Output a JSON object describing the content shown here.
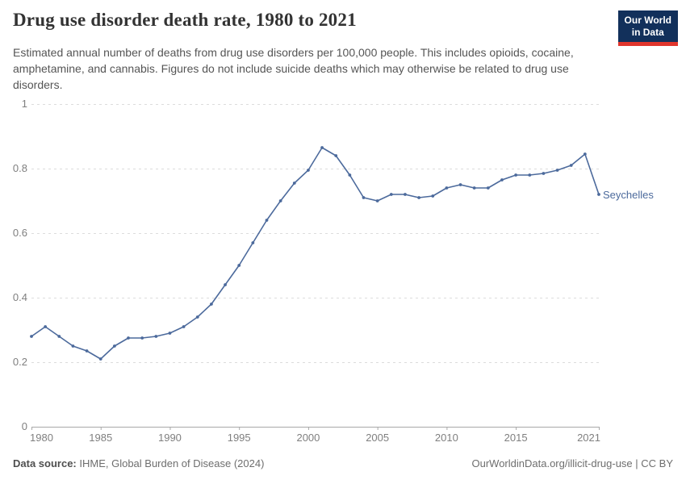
{
  "header": {
    "title": "Drug use disorder death rate, 1980 to 2021",
    "subtitle": "Estimated annual number of deaths from drug use disorders per 100,000 people. This includes opioids, cocaine, amphetamine, and cannabis. Figures do not include suicide deaths which may otherwise be related to drug use disorders.",
    "logo_line1": "Our World",
    "logo_line2": "in Data",
    "logo_bg_color": "#12305B",
    "logo_accent_color": "#E0352C"
  },
  "chart_data": {
    "type": "line",
    "title": "Drug use disorder death rate, 1980 to 2021",
    "xlabel": "",
    "ylabel": "",
    "xlim": [
      1980,
      2021
    ],
    "ylim": [
      0,
      1
    ],
    "xticks": [
      1980,
      1985,
      1990,
      1995,
      2000,
      2005,
      2010,
      2015,
      2021
    ],
    "yticks": [
      0,
      0.2,
      0.4,
      0.6,
      0.8,
      1
    ],
    "grid": "horizontal-dashed",
    "legend": "end-of-line-label",
    "end_label": "Seychelles",
    "line_color": "#4C6A9C",
    "series": [
      {
        "name": "Seychelles",
        "x": [
          1980,
          1981,
          1982,
          1983,
          1984,
          1985,
          1986,
          1987,
          1988,
          1989,
          1990,
          1991,
          1992,
          1993,
          1994,
          1995,
          1996,
          1997,
          1998,
          1999,
          2000,
          2001,
          2002,
          2003,
          2004,
          2005,
          2006,
          2007,
          2008,
          2009,
          2010,
          2011,
          2012,
          2013,
          2014,
          2015,
          2016,
          2017,
          2018,
          2019,
          2020,
          2021
        ],
        "values": [
          0.28,
          0.31,
          0.28,
          0.25,
          0.235,
          0.21,
          0.25,
          0.275,
          0.275,
          0.28,
          0.29,
          0.31,
          0.34,
          0.38,
          0.44,
          0.5,
          0.57,
          0.64,
          0.7,
          0.755,
          0.795,
          0.865,
          0.84,
          0.78,
          0.71,
          0.7,
          0.72,
          0.72,
          0.71,
          0.715,
          0.74,
          0.75,
          0.74,
          0.74,
          0.765,
          0.78,
          0.78,
          0.785,
          0.795,
          0.81,
          0.845,
          0.72
        ]
      }
    ]
  },
  "footer": {
    "data_source_label": "Data source:",
    "data_source_value": " IHME, Global Burden of Disease (2024)",
    "attribution": "OurWorldinData.org/illicit-drug-use | CC BY"
  }
}
